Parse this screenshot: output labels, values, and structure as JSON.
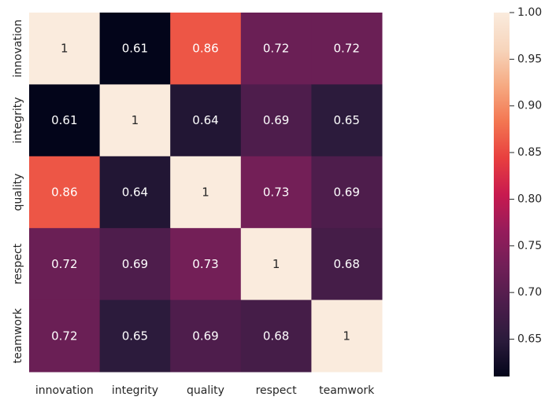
{
  "chart_data": {
    "type": "heatmap",
    "title": "",
    "xlabel": "",
    "ylabel": "",
    "rows": [
      "innovation",
      "integrity",
      "quality",
      "respect",
      "teamwork"
    ],
    "columns": [
      "innovation",
      "integrity",
      "quality",
      "respect",
      "teamwork"
    ],
    "values": [
      [
        1.0,
        0.61,
        0.86,
        0.72,
        0.72
      ],
      [
        0.61,
        1.0,
        0.64,
        0.69,
        0.65
      ],
      [
        0.86,
        0.64,
        1.0,
        0.73,
        0.69
      ],
      [
        0.72,
        0.69,
        0.73,
        1.0,
        0.68
      ],
      [
        0.72,
        0.65,
        0.69,
        0.68,
        1.0
      ]
    ],
    "cell_labels": [
      [
        "1",
        "0.61",
        "0.86",
        "0.72",
        "0.72"
      ],
      [
        "0.61",
        "1",
        "0.64",
        "0.69",
        "0.65"
      ],
      [
        "0.86",
        "0.64",
        "1",
        "0.73",
        "0.69"
      ],
      [
        "0.72",
        "0.69",
        "0.73",
        "1",
        "0.68"
      ],
      [
        "0.72",
        "0.65",
        "0.69",
        "0.68",
        "1"
      ]
    ],
    "colorbar": {
      "min": 0.61,
      "max": 1.0,
      "ticks": [
        0.65,
        0.7,
        0.75,
        0.8,
        0.85,
        0.9,
        0.95,
        1.0
      ],
      "tick_labels": [
        "0.65",
        "0.70",
        "0.75",
        "0.80",
        "0.85",
        "0.90",
        "0.95",
        "1.00"
      ],
      "colormap": "rocket",
      "colormap_stops": [
        "#03051a",
        "#2b1b3c",
        "#4c1d4b",
        "#701f57",
        "#961c5b",
        "#c81a4f",
        "#e83f3f",
        "#f37651",
        "#f6aa82",
        "#f7d5bc",
        "#faebdd"
      ]
    },
    "grid": false,
    "legend": "none"
  }
}
